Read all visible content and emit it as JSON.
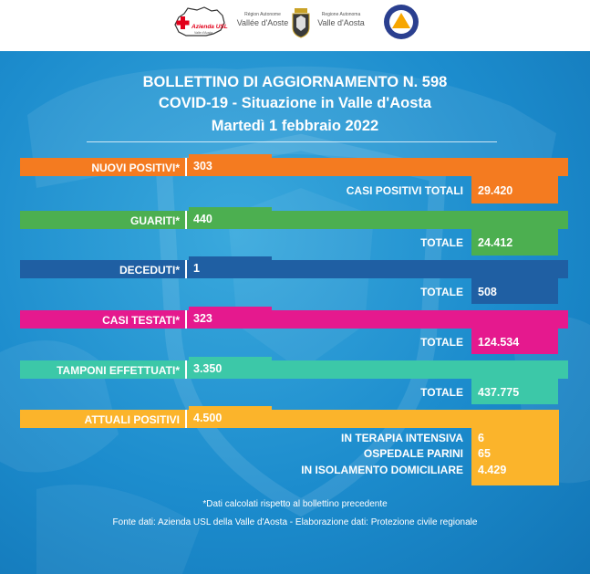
{
  "header": {
    "asl_logo_text": "Azienda USL",
    "asl_logo_sub": "Valle d'Aosta",
    "region_text_left_top": "Région Autonome",
    "region_text_left_main": "Vallée d'Aoste",
    "region_text_right_top": "Regione Autonoma",
    "region_text_right_main": "Valle d'Aosta"
  },
  "title": {
    "line1": "BOLLETTINO DI AGGIORNAMENTO N. 598",
    "line2": "COVID-19 - Situazione in Valle d'Aosta",
    "line3": "Martedì 1 febbraio 2022"
  },
  "rows": {
    "nuovi": {
      "label": "NUOVI POSITIVI*",
      "value": "303",
      "total_label": "CASI POSITIVI TOTALI",
      "total_value": "29.420",
      "color": "#f47b20"
    },
    "guariti": {
      "label": "GUARITI*",
      "value": "440",
      "total_label": "TOTALE",
      "total_value": "24.412",
      "color": "#4caf50"
    },
    "deceduti": {
      "label": "DECEDUTI*",
      "value": "1",
      "total_label": "TOTALE",
      "total_value": "508",
      "color": "#1f5fa3"
    },
    "testati": {
      "label": "CASI TESTATI*",
      "value": "323",
      "total_label": "TOTALE",
      "total_value": "124.534",
      "color": "#e5198e"
    },
    "tamponi": {
      "label": "TAMPONI EFFETTUATI*",
      "value": "3.350",
      "total_label": "TOTALE",
      "total_value": "437.775",
      "color": "#3cc8a8"
    },
    "attuali": {
      "label": "ATTUALI POSITIVI",
      "value": "4.500",
      "color": "#fbb42b",
      "details": [
        {
          "label": "IN TERAPIA INTENSIVA",
          "value": "6"
        },
        {
          "label": "OSPEDALE PARINI",
          "value": "65"
        },
        {
          "label": "IN ISOLAMENTO DOMICILIARE",
          "value": "4.429"
        }
      ]
    }
  },
  "footer": {
    "note": "*Dati calcolati rispetto al bollettino precedente",
    "source": "Fonte dati: Azienda USL della Valle d'Aosta - Elaborazione dati: Protezione civile regionale"
  }
}
